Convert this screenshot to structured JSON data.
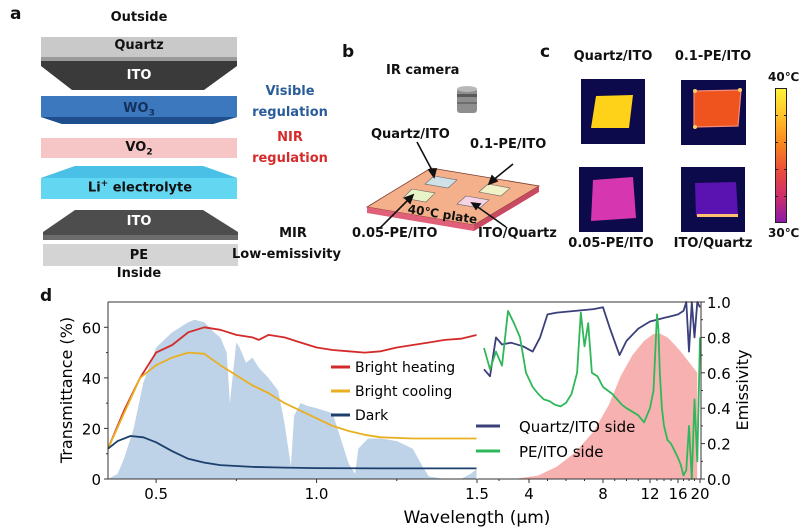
{
  "panel_a": {
    "letter": "a",
    "outside": "Outside",
    "inside": "Inside",
    "layers": {
      "quartz": "Quartz",
      "ito_top": "ITO",
      "wo3": "WO",
      "wo3_sub": "3",
      "vo2": "VO",
      "vo2_sub": "2",
      "li": "Li",
      "li_sup": "+",
      "electrolyte": " electrolyte",
      "ito_bottom": "ITO",
      "pe": "PE"
    },
    "annotations": {
      "visible_1": "Visible",
      "visible_2": "regulation",
      "nir_1": "NIR",
      "nir_2": "regulation",
      "mir_1": "MIR",
      "mir_2": "Low-emissivity"
    },
    "colors": {
      "visible": "#2a5c9a",
      "nir": "#d62b2b"
    }
  },
  "panel_b": {
    "letter": "b",
    "camera": "IR camera",
    "samples": {
      "quartz_ito": "Quartz/ITO",
      "pe01": "0.1-PE/ITO",
      "pe005": "0.05-PE/ITO",
      "ito_quartz": "ITO/Quartz"
    },
    "plate": "40℃ plate"
  },
  "panel_c": {
    "letter": "c",
    "images": [
      {
        "label": "Quartz/ITO",
        "fill": "#ffd21a"
      },
      {
        "label": "0.1-PE/ITO",
        "fill": "#f0541e"
      },
      {
        "label": "0.05-PE/ITO",
        "fill": "#d636b0"
      },
      {
        "label": "ITO/Quartz",
        "fill": "#5a12b0"
      }
    ],
    "colorbar": {
      "max": "40℃",
      "min": "30℃"
    }
  },
  "chart_data": {
    "type": "line",
    "panel_letter": "d",
    "xlabel": "Wavelength (μm)",
    "ylabel_left": "Transmittance (%)",
    "ylabel_right": "Emissivity",
    "left": {
      "xlim": [
        0.35,
        1.5
      ],
      "ylim": [
        0,
        70
      ],
      "xticks": [
        {
          "v": 0.5,
          "label": "0.5"
        },
        {
          "v": 1.0,
          "label": "1.0"
        },
        {
          "v": 1.5,
          "label": "1.5"
        }
      ],
      "yticks": [
        {
          "v": 0,
          "label": "0"
        },
        {
          "v": 20,
          "label": "20"
        },
        {
          "v": 40,
          "label": "40"
        },
        {
          "v": 60,
          "label": "60"
        }
      ],
      "background_solar": {
        "x": [
          0.35,
          0.38,
          0.4,
          0.43,
          0.46,
          0.5,
          0.55,
          0.6,
          0.62,
          0.65,
          0.68,
          0.7,
          0.72,
          0.73,
          0.75,
          0.76,
          0.78,
          0.8,
          0.82,
          0.85,
          0.88,
          0.9,
          0.92,
          0.93,
          0.95,
          0.97,
          1.0,
          1.05,
          1.1,
          1.12,
          1.13,
          1.16,
          1.2,
          1.25,
          1.3,
          1.33,
          1.35,
          1.4,
          1.45,
          1.48,
          1.5
        ],
        "y": [
          0,
          2,
          8,
          20,
          38,
          52,
          58,
          62,
          63,
          62,
          58,
          56,
          50,
          30,
          54,
          52,
          46,
          48,
          44,
          40,
          35,
          22,
          5,
          25,
          30,
          29,
          28,
          26,
          6,
          2,
          12,
          16,
          16,
          15,
          12,
          5,
          1,
          0,
          0,
          2,
          4
        ]
      },
      "series": [
        {
          "name": "Bright heating",
          "color": "#d42a2a",
          "x": [
            0.35,
            0.4,
            0.45,
            0.5,
            0.55,
            0.6,
            0.65,
            0.7,
            0.75,
            0.8,
            0.82,
            0.85,
            0.9,
            0.95,
            1.0,
            1.05,
            1.1,
            1.15,
            1.2,
            1.25,
            1.3,
            1.35,
            1.4,
            1.45,
            1.5
          ],
          "y": [
            12,
            27,
            40,
            50,
            53,
            58,
            60,
            59,
            57,
            56,
            55,
            57,
            56,
            54,
            52,
            51,
            50.5,
            50,
            50.5,
            52,
            53,
            54,
            55,
            55.5,
            57
          ]
        },
        {
          "name": "Bright cooling",
          "color": "#e8b020",
          "x": [
            0.35,
            0.4,
            0.45,
            0.5,
            0.55,
            0.6,
            0.65,
            0.7,
            0.75,
            0.8,
            0.85,
            0.9,
            0.95,
            1.0,
            1.05,
            1.1,
            1.15,
            1.2,
            1.3,
            1.4,
            1.5
          ],
          "y": [
            12,
            26,
            40,
            45,
            48,
            50,
            49.5,
            45,
            41,
            37,
            34,
            30,
            27,
            24,
            21,
            19,
            17.5,
            16.5,
            16,
            16,
            16
          ]
        },
        {
          "name": "Dark",
          "color": "#1d3f6e",
          "x": [
            0.35,
            0.38,
            0.42,
            0.46,
            0.5,
            0.55,
            0.6,
            0.65,
            0.7,
            0.8,
            0.9,
            1.0,
            1.2,
            1.4,
            1.5
          ],
          "y": [
            12,
            15,
            17,
            16.5,
            14.5,
            11,
            8,
            6.5,
            5.5,
            4.8,
            4.5,
            4.3,
            4.2,
            4.2,
            4.2
          ]
        }
      ],
      "legend": [
        "Bright heating",
        "Bright cooling",
        "Dark"
      ]
    },
    "right": {
      "xticks": [
        {
          "v": 4,
          "label": "4"
        },
        {
          "v": 8,
          "label": "8"
        },
        {
          "v": 12,
          "label": "12"
        },
        {
          "v": 16,
          "label": "16"
        },
        {
          "v": 20,
          "label": "20"
        }
      ],
      "ylim": [
        0,
        1.0
      ],
      "yticks": [
        {
          "v": 0,
          "label": "0.0"
        },
        {
          "v": 0.2,
          "label": "0.2"
        },
        {
          "v": 0.4,
          "label": "0.4"
        },
        {
          "v": 0.6,
          "label": "0.6"
        },
        {
          "v": 0.8,
          "label": "0.8"
        },
        {
          "v": 1.0,
          "label": "1.0"
        }
      ],
      "background_blackbody": {
        "x": [
          2.5,
          3.5,
          4.5,
          5.5,
          6.5,
          7.5,
          8.5,
          9.5,
          10.5,
          11.5,
          12.5,
          13.5,
          14.5,
          15.5,
          16.5,
          17.5,
          18.5,
          19.5
        ],
        "y": [
          0,
          0,
          0.02,
          0.07,
          0.15,
          0.27,
          0.42,
          0.58,
          0.7,
          0.78,
          0.82,
          0.82,
          0.8,
          0.76,
          0.72,
          0.68,
          0.64,
          0.6
        ]
      },
      "series": [
        {
          "name": "Quartz/ITO side",
          "color": "#3b3f7a",
          "x": [
            2.5,
            2.7,
            2.9,
            3.1,
            3.4,
            3.8,
            4.2,
            4.6,
            5.0,
            5.5,
            6.5,
            7.5,
            8.0,
            8.6,
            9.4,
            10.0,
            11.0,
            12.0,
            13.0,
            14.0,
            15.0,
            16.0,
            17.0,
            17.5,
            18.0,
            18.5,
            19.0,
            19.5,
            20.0
          ],
          "y": [
            0.62,
            0.58,
            0.8,
            0.76,
            0.77,
            0.75,
            0.72,
            0.8,
            0.93,
            0.94,
            0.95,
            0.96,
            0.97,
            0.85,
            0.7,
            0.78,
            0.85,
            0.89,
            0.9,
            0.91,
            0.92,
            0.93,
            0.95,
            1.0,
            0.72,
            1.0,
            0.8,
            1.0,
            0.97
          ]
        },
        {
          "name": "PE/ITO side",
          "color": "#2fb85a",
          "x": [
            2.5,
            2.7,
            2.9,
            3.1,
            3.3,
            3.5,
            3.7,
            3.9,
            4.2,
            4.5,
            4.8,
            5.1,
            5.4,
            5.7,
            6.0,
            6.3,
            6.6,
            6.8,
            7.0,
            7.2,
            7.4,
            7.7,
            8.0,
            8.4,
            8.8,
            9.2,
            9.6,
            10.0,
            10.5,
            11.0,
            11.5,
            12.0,
            12.5,
            13.0,
            13.2,
            13.4,
            13.7,
            14.0,
            14.5,
            15.0,
            15.5,
            16.0,
            16.5,
            17.0,
            17.5,
            18.0,
            18.5,
            19.0,
            19.5,
            20.0
          ],
          "y": [
            0.74,
            0.62,
            0.72,
            0.64,
            0.95,
            0.88,
            0.8,
            0.6,
            0.52,
            0.48,
            0.45,
            0.44,
            0.42,
            0.41,
            0.43,
            0.48,
            0.6,
            0.94,
            0.75,
            0.88,
            0.6,
            0.58,
            0.52,
            0.5,
            0.48,
            0.45,
            0.42,
            0.4,
            0.38,
            0.36,
            0.32,
            0.4,
            0.5,
            0.93,
            0.85,
            0.6,
            0.4,
            0.3,
            0.22,
            0.2,
            0.16,
            0.12,
            0.08,
            0.02,
            0.05,
            0.3,
            0.0,
            0.45,
            0.1,
            0.8
          ]
        }
      ],
      "legend": [
        "Quartz/ITO side",
        "PE/ITO side"
      ]
    }
  }
}
